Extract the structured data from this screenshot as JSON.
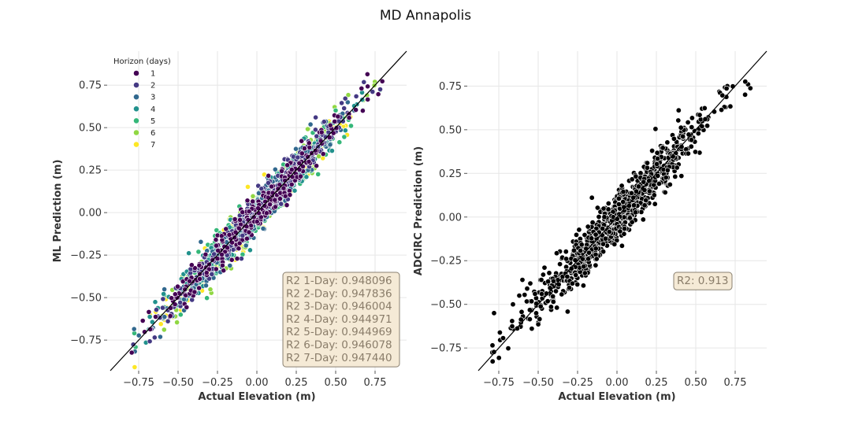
{
  "figure": {
    "suptitle": "MD Annapolis"
  },
  "colors": {
    "horizon": [
      "#440154",
      "#443983",
      "#31688e",
      "#21918c",
      "#35b779",
      "#90d743",
      "#fde725"
    ],
    "adcirc": "#000000",
    "grid": "#e6e6e6",
    "box_fill": "#f5ead6",
    "box_edge": "#8a8070"
  },
  "chart_data": [
    {
      "type": "scatter",
      "panel": "left",
      "xlabel": "Actual Elevation (m)",
      "ylabel": "ML Prediction (m)",
      "xlim": [
        -0.95,
        0.95
      ],
      "ylim": [
        -0.93,
        0.95
      ],
      "xticks": [
        "−0.75",
        "−0.50",
        "−0.25",
        "0.00",
        "0.25",
        "0.50",
        "0.75"
      ],
      "xtick_values": [
        -0.75,
        -0.5,
        -0.25,
        0.0,
        0.25,
        0.5,
        0.75
      ],
      "yticks": [
        "−0.75",
        "−0.50",
        "−0.25",
        "0.00",
        "0.25",
        "0.50",
        "0.75"
      ],
      "ytick_values": [
        -0.75,
        -0.5,
        -0.25,
        0.0,
        0.25,
        0.5,
        0.75
      ],
      "grid": true,
      "identity_line": true,
      "legend": {
        "title": "Horizon (days)",
        "placement": "top-left",
        "entries": [
          "1",
          "2",
          "3",
          "4",
          "5",
          "6",
          "7"
        ]
      },
      "annotation": [
        "R2 1-Day: 0.948096",
        "R2 2-Day: 0.947836",
        "R2 3-Day: 0.946004",
        "R2 4-Day: 0.944971",
        "R2 5-Day: 0.944969",
        "R2 6-Day: 0.946078",
        "R2 7-Day: 0.947440"
      ],
      "r2": [
        0.948096,
        0.947836,
        0.946004,
        0.944971,
        0.944969,
        0.946078,
        0.94744
      ],
      "points_per_horizon": 260,
      "actual_range": [
        -0.8,
        0.85
      ]
    },
    {
      "type": "scatter",
      "panel": "right",
      "xlabel": "Actual Elevation (m)",
      "ylabel": "ADCIRC Prediction (m)",
      "xlim": [
        -0.95,
        0.95
      ],
      "ylim": [
        -0.88,
        0.95
      ],
      "xticks": [
        "−0.75",
        "−0.50",
        "−0.25",
        "0.00",
        "0.25",
        "0.50",
        "0.75"
      ],
      "xtick_values": [
        -0.75,
        -0.5,
        -0.25,
        0.0,
        0.25,
        0.5,
        0.75
      ],
      "yticks": [
        "−0.75",
        "−0.50",
        "−0.25",
        "0.00",
        "0.25",
        "0.50",
        "0.75"
      ],
      "ytick_values": [
        -0.75,
        -0.5,
        -0.25,
        0.0,
        0.25,
        0.5,
        0.75
      ],
      "grid": true,
      "identity_line": true,
      "annotation": [
        "R2: 0.913"
      ],
      "r2": 0.913,
      "point_count": 900,
      "actual_range": [
        -0.8,
        0.85
      ]
    }
  ]
}
